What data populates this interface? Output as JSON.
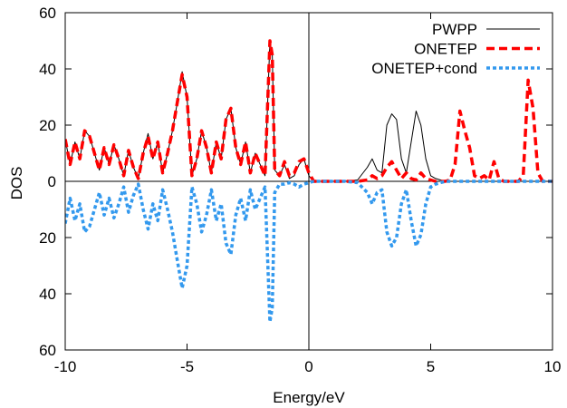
{
  "chart_data": {
    "type": "line",
    "xlabel": "Energy/eV",
    "ylabel": "DOS",
    "xlim": [
      -10,
      10
    ],
    "ylim": [
      -60,
      60
    ],
    "xticks": [
      -10,
      -5,
      0,
      5,
      10
    ],
    "yticks": [
      -60,
      -40,
      -20,
      0,
      20,
      40,
      60
    ],
    "ytick_labels": [
      "60",
      "40",
      "20",
      "0",
      "20",
      "40",
      "60"
    ],
    "xtick_labels": [
      "-10",
      "-5",
      "0",
      "5",
      "10"
    ],
    "grid": false,
    "legend_position": "top-right",
    "reference_lines": {
      "horizontal_y": 0,
      "vertical_x": 0
    },
    "note": "Lower half mirrors the upper half (negative y drawn with positive tick labels).",
    "series": [
      {
        "name": "PWPP",
        "color": "#000000",
        "style": "solid",
        "x": [
          -10,
          -9.8,
          -9.6,
          -9.4,
          -9.2,
          -9.0,
          -8.8,
          -8.6,
          -8.4,
          -8.2,
          -8.0,
          -7.8,
          -7.6,
          -7.4,
          -7.2,
          -7.0,
          -6.8,
          -6.6,
          -6.4,
          -6.2,
          -6.0,
          -5.8,
          -5.6,
          -5.4,
          -5.2,
          -5.0,
          -4.8,
          -4.6,
          -4.4,
          -4.2,
          -4.0,
          -3.8,
          -3.6,
          -3.4,
          -3.2,
          -3.0,
          -2.8,
          -2.6,
          -2.4,
          -2.2,
          -2.0,
          -1.8,
          -1.6,
          -1.5,
          -1.4,
          -1.2,
          -1.0,
          -0.8,
          -0.6,
          -0.4,
          -0.2,
          0.0,
          0.2,
          0.5,
          1.0,
          1.5,
          2.0,
          2.4,
          2.6,
          2.8,
          3.0,
          3.2,
          3.4,
          3.6,
          3.8,
          4.0,
          4.2,
          4.4,
          4.6,
          4.8,
          5.0,
          5.2,
          5.4,
          5.6,
          6.0,
          7.0,
          8.0,
          9.0,
          10.0
        ],
        "y": [
          15,
          6,
          14,
          8,
          18,
          16,
          10,
          4,
          12,
          6,
          13,
          8,
          2,
          11,
          5,
          1,
          10,
          17,
          8,
          14,
          3,
          10,
          18,
          28,
          39,
          30,
          2,
          8,
          18,
          12,
          3,
          14,
          8,
          22,
          26,
          12,
          6,
          14,
          3,
          10,
          6,
          2,
          50,
          45,
          4,
          2,
          6,
          1,
          2,
          6,
          8,
          2,
          0,
          0,
          0,
          0,
          0.5,
          5,
          8,
          4,
          3,
          20,
          24,
          22,
          8,
          3,
          14,
          25,
          20,
          8,
          2,
          1,
          0.5,
          0,
          0,
          0,
          0,
          0,
          0
        ]
      },
      {
        "name": "ONETEP",
        "color": "#ff0000",
        "style": "dashed",
        "x": [
          -10,
          -9.8,
          -9.6,
          -9.4,
          -9.2,
          -9.0,
          -8.8,
          -8.6,
          -8.4,
          -8.2,
          -8.0,
          -7.8,
          -7.6,
          -7.4,
          -7.2,
          -7.0,
          -6.8,
          -6.6,
          -6.4,
          -6.2,
          -6.0,
          -5.8,
          -5.6,
          -5.4,
          -5.2,
          -5.0,
          -4.8,
          -4.6,
          -4.4,
          -4.2,
          -4.0,
          -3.8,
          -3.6,
          -3.4,
          -3.2,
          -3.0,
          -2.8,
          -2.6,
          -2.4,
          -2.2,
          -2.0,
          -1.8,
          -1.6,
          -1.5,
          -1.4,
          -1.2,
          -1.0,
          -0.8,
          -0.6,
          -0.4,
          -0.2,
          0.0,
          0.2,
          0.5,
          1.0,
          1.5,
          2.0,
          2.4,
          2.6,
          2.8,
          3.0,
          3.2,
          3.4,
          3.6,
          3.8,
          4.0,
          4.2,
          4.4,
          4.6,
          4.8,
          5.0,
          5.2,
          5.4,
          5.6,
          5.8,
          6.0,
          6.2,
          6.4,
          6.6,
          6.8,
          7.0,
          7.2,
          7.4,
          7.6,
          7.8,
          8.0,
          8.2,
          8.4,
          8.6,
          8.8,
          9.0,
          9.2,
          9.4,
          9.6,
          10.0
        ],
        "y": [
          15,
          6,
          14,
          8,
          18,
          16,
          10,
          4,
          12,
          6,
          13,
          8,
          2,
          11,
          5,
          1,
          10,
          16,
          8,
          14,
          3,
          10,
          18,
          28,
          38,
          30,
          2,
          8,
          18,
          12,
          3,
          14,
          8,
          22,
          26,
          12,
          6,
          14,
          3,
          10,
          6,
          2,
          50,
          45,
          4,
          2,
          7,
          2,
          3,
          7,
          8,
          3,
          0,
          0,
          0,
          0,
          0,
          0.5,
          2,
          1,
          2,
          5,
          7,
          4,
          1,
          3,
          1,
          0.5,
          3,
          1,
          0.5,
          0,
          0,
          0,
          0.5,
          6,
          25,
          18,
          12,
          2,
          1,
          2,
          0.5,
          7,
          1,
          0,
          0,
          0,
          0,
          2,
          36,
          26,
          3,
          0,
          0
        ]
      },
      {
        "name": "ONETEP+cond",
        "color": "#3399ee",
        "style": "dotted",
        "x": [
          -10,
          -9.8,
          -9.6,
          -9.4,
          -9.2,
          -9.0,
          -8.8,
          -8.6,
          -8.4,
          -8.2,
          -8.0,
          -7.8,
          -7.6,
          -7.4,
          -7.2,
          -7.0,
          -6.8,
          -6.6,
          -6.4,
          -6.2,
          -6.0,
          -5.8,
          -5.6,
          -5.4,
          -5.2,
          -5.0,
          -4.8,
          -4.6,
          -4.4,
          -4.2,
          -4.0,
          -3.8,
          -3.6,
          -3.4,
          -3.2,
          -3.0,
          -2.8,
          -2.6,
          -2.4,
          -2.2,
          -2.0,
          -1.8,
          -1.6,
          -1.5,
          -1.4,
          -1.2,
          -1.0,
          -0.8,
          -0.6,
          -0.4,
          -0.2,
          0.0,
          0.2,
          0.5,
          1.0,
          1.5,
          2.0,
          2.4,
          2.6,
          2.8,
          3.0,
          3.2,
          3.4,
          3.6,
          3.8,
          4.0,
          4.2,
          4.4,
          4.6,
          4.8,
          5.0,
          5.2,
          5.4,
          5.6,
          6.0,
          7.0,
          8.0,
          9.0,
          10.0
        ],
        "y": [
          -15,
          -6,
          -14,
          -8,
          -18,
          -16,
          -10,
          -4,
          -12,
          -6,
          -13,
          -8,
          -2,
          -11,
          -5,
          -1,
          -10,
          -17,
          -8,
          -14,
          -3,
          -10,
          -18,
          -28,
          -38,
          -30,
          -2,
          -8,
          -18,
          -12,
          -3,
          -14,
          -8,
          -22,
          -26,
          -12,
          -6,
          -14,
          -3,
          -10,
          -6,
          -2,
          -50,
          -45,
          -4,
          -1,
          -1,
          -0.5,
          -1,
          -2,
          -1,
          -0.5,
          0,
          0,
          0,
          0,
          -0.5,
          -4,
          -8,
          -4,
          -3,
          -18,
          -23,
          -20,
          -8,
          -3,
          -14,
          -23,
          -19,
          -8,
          -2,
          -1,
          -0.5,
          0,
          0,
          0,
          0,
          0,
          0
        ]
      }
    ]
  }
}
